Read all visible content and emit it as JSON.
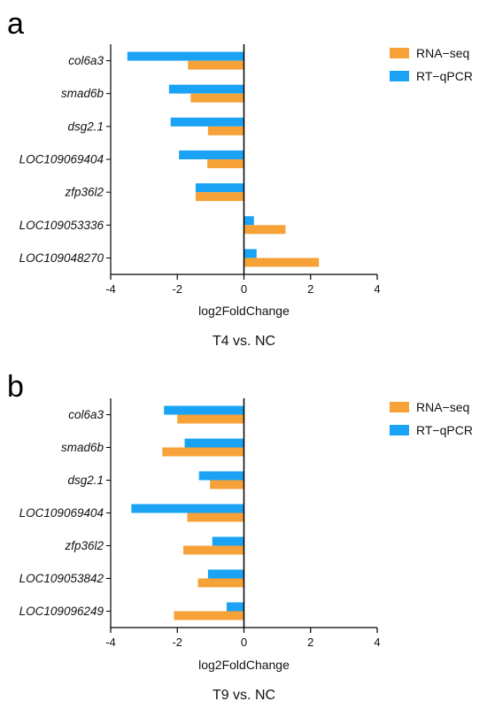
{
  "colors": {
    "rna_seq": "#F7A239",
    "rt_qpcr": "#1AA3F4"
  },
  "chart_data": [
    {
      "type": "bar",
      "orientation": "horizontal",
      "panel_label": "a",
      "caption": "T4 vs. NC",
      "xlabel": "log2FoldChange",
      "xlim": [
        -4,
        4
      ],
      "xticks": [
        "-4",
        "-2",
        "0",
        "2",
        "4"
      ],
      "categories": [
        "col6a3",
        "smad6b",
        "dsg2.1",
        "LOC109069404",
        "zfp36l2",
        "LOC109053336",
        "LOC109048270"
      ],
      "series": [
        {
          "name": "RT−qPCR",
          "color": "#1AA3F4",
          "values": [
            -3.5,
            -2.25,
            -2.2,
            -1.95,
            -1.45,
            0.3,
            0.38
          ]
        },
        {
          "name": "RNA−seq",
          "color": "#F7A239",
          "values": [
            -1.68,
            -1.6,
            -1.08,
            -1.1,
            -1.45,
            1.25,
            2.25
          ]
        }
      ],
      "legend": [
        "RNA−seq",
        "RT−qPCR"
      ],
      "legend_position": "top-right",
      "grid": false
    },
    {
      "type": "bar",
      "orientation": "horizontal",
      "panel_label": "b",
      "caption": "T9 vs. NC",
      "xlabel": "log2FoldChange",
      "xlim": [
        -4,
        4
      ],
      "xticks": [
        "-4",
        "-2",
        "0",
        "2",
        "4"
      ],
      "categories": [
        "col6a3",
        "smad6b",
        "dsg2.1",
        "LOC109069404",
        "zfp36l2",
        "LOC109053842",
        "LOC109096249"
      ],
      "series": [
        {
          "name": "RT−qPCR",
          "color": "#1AA3F4",
          "values": [
            -2.4,
            -1.78,
            -1.35,
            -3.38,
            -0.95,
            -1.08,
            -0.52
          ]
        },
        {
          "name": "RNA−seq",
          "color": "#F7A239",
          "values": [
            -2.0,
            -2.45,
            -1.02,
            -1.7,
            -1.82,
            -1.38,
            -2.1
          ]
        }
      ],
      "legend": [
        "RNA−seq",
        "RT−qPCR"
      ],
      "legend_position": "top-right",
      "grid": false
    }
  ]
}
